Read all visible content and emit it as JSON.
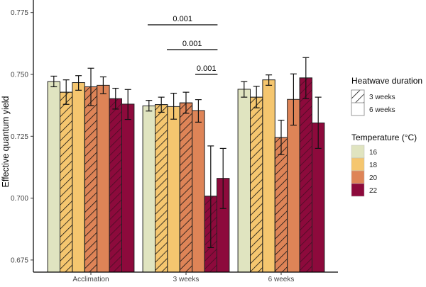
{
  "chart_data": {
    "type": "bar",
    "title": "",
    "xlabel": "",
    "ylabel": "Effective quantum yield",
    "ylim": [
      0.67,
      0.777
    ],
    "yticks": [
      "0.675",
      "0.700",
      "0.725",
      "0.750",
      "0.775"
    ],
    "grid": false,
    "categories": [
      "Acclimation",
      "3 weeks",
      "6 weeks"
    ],
    "bar_order": [
      {
        "temperature": "16",
        "duration": "6 weeks"
      },
      {
        "temperature": "18",
        "duration": "3 weeks"
      },
      {
        "temperature": "18",
        "duration": "6 weeks"
      },
      {
        "temperature": "20",
        "duration": "3 weeks"
      },
      {
        "temperature": "20",
        "duration": "6 weeks"
      },
      {
        "temperature": "22",
        "duration": "3 weeks"
      },
      {
        "temperature": "22",
        "duration": "6 weeks"
      }
    ],
    "values": [
      [
        0.7471,
        0.7428,
        0.7467,
        0.745,
        0.7456,
        0.7402,
        0.738
      ],
      [
        0.7373,
        0.7378,
        0.737,
        0.7385,
        0.7354,
        0.7008,
        0.708
      ],
      [
        0.744,
        0.7408,
        0.7478,
        0.7245,
        0.7399,
        0.7486,
        0.7304
      ]
    ],
    "error_upper": [
      [
        0.7493,
        0.7478,
        0.7495,
        0.7525,
        0.749,
        0.7444,
        0.7439
      ],
      [
        0.7395,
        0.7408,
        0.7424,
        0.7428,
        0.7398,
        0.7211,
        0.7201
      ],
      [
        0.7471,
        0.7452,
        0.7498,
        0.7315,
        0.7502,
        0.7568,
        0.7408
      ]
    ],
    "error_lower": [
      [
        0.745,
        0.7379,
        0.7436,
        0.7374,
        0.7422,
        0.736,
        0.7318
      ],
      [
        0.7352,
        0.7347,
        0.7319,
        0.7343,
        0.7307,
        0.68,
        0.6958
      ],
      [
        0.7408,
        0.7365,
        0.7456,
        0.7176,
        0.7295,
        0.7402,
        0.7201
      ]
    ],
    "significance": [
      {
        "group": "3 weeks",
        "from_bar": 0,
        "to_bar": 6,
        "label": "0.001"
      },
      {
        "group": "3 weeks",
        "from_bar": 2,
        "to_bar": 6,
        "label": "0.001"
      },
      {
        "group": "3 weeks",
        "from_bar": 4,
        "to_bar": 6,
        "label": "0.001"
      }
    ],
    "legend": {
      "placement": "right",
      "duration_title": "Heatwave duration",
      "duration_items": [
        {
          "label": "3 weeks",
          "pattern": "hatched"
        },
        {
          "label": "6 weeks",
          "pattern": "solid"
        }
      ],
      "temperature_title": "Temperature (°C)",
      "temperature_items": [
        {
          "label": "16",
          "color": "#e0e4c0"
        },
        {
          "label": "18",
          "color": "#f5c66f"
        },
        {
          "label": "20",
          "color": "#de8457"
        },
        {
          "label": "22",
          "color": "#8d0a3c"
        }
      ]
    }
  }
}
